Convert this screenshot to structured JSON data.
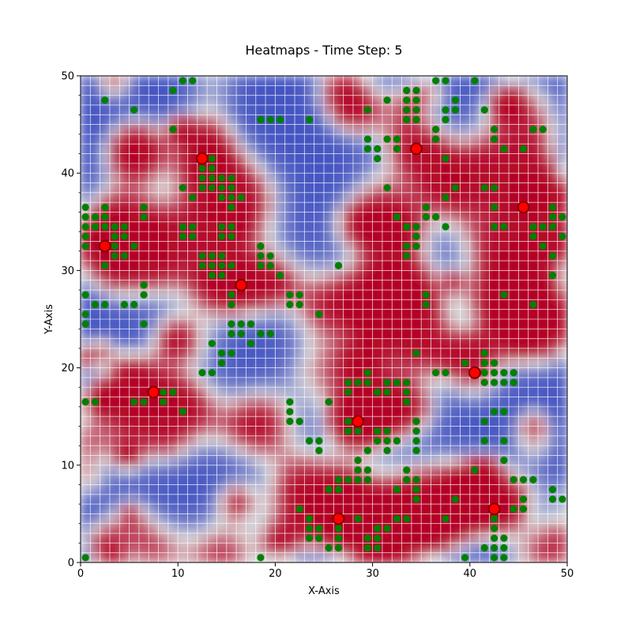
{
  "chart_data": {
    "type": "heatmap",
    "title": "Heatmaps - Time Step: 5",
    "xlabel": "X-Axis",
    "ylabel": "Y-Axis",
    "xlim": [
      0,
      50
    ],
    "ylim": [
      0,
      50
    ],
    "xticks": [
      "0",
      "10",
      "20",
      "30",
      "40",
      "50"
    ],
    "yticks": [
      "0",
      "10",
      "20",
      "30",
      "40",
      "50"
    ],
    "grid": true,
    "grid_resolution": 50,
    "colormap": "coolwarm",
    "colors": {
      "low": "#3b4cc0",
      "mid": "#dddddd",
      "high": "#b40426",
      "grid_line": "#ffffff",
      "green_marker": "#008000",
      "red_marker": "#ff0000",
      "red_marker_edge": "#8b0000"
    },
    "red_markers": [
      [
        2.5,
        32.5
      ],
      [
        7.5,
        17.5
      ],
      [
        12.5,
        41.5
      ],
      [
        16.5,
        28.5
      ],
      [
        26.5,
        4.5
      ],
      [
        28.5,
        14.5
      ],
      [
        34.5,
        42.5
      ],
      [
        40.5,
        19.5
      ],
      [
        42.5,
        5.5
      ],
      [
        45.5,
        36.5
      ]
    ],
    "green_markers": [
      [
        0.5,
        0.5
      ],
      [
        0.5,
        16.5
      ],
      [
        0.5,
        24.5
      ],
      [
        0.5,
        25.5
      ],
      [
        0.5,
        27.5
      ],
      [
        0.5,
        32.5
      ],
      [
        0.5,
        33.5
      ],
      [
        0.5,
        34.5
      ],
      [
        0.5,
        35.5
      ],
      [
        0.5,
        36.5
      ],
      [
        1.5,
        16.5
      ],
      [
        1.5,
        26.5
      ],
      [
        1.5,
        34.5
      ],
      [
        1.5,
        35.5
      ],
      [
        2.5,
        26.5
      ],
      [
        2.5,
        30.5
      ],
      [
        2.5,
        34.5
      ],
      [
        2.5,
        35.5
      ],
      [
        2.5,
        36.5
      ],
      [
        2.5,
        47.5
      ],
      [
        3.5,
        31.5
      ],
      [
        3.5,
        32.5
      ],
      [
        3.5,
        33.5
      ],
      [
        3.5,
        34.5
      ],
      [
        4.5,
        26.5
      ],
      [
        4.5,
        31.5
      ],
      [
        4.5,
        33.5
      ],
      [
        4.5,
        34.5
      ],
      [
        5.5,
        16.5
      ],
      [
        5.5,
        26.5
      ],
      [
        5.5,
        32.5
      ],
      [
        5.5,
        46.5
      ],
      [
        6.5,
        16.5
      ],
      [
        6.5,
        24.5
      ],
      [
        6.5,
        27.5
      ],
      [
        6.5,
        28.5
      ],
      [
        6.5,
        35.5
      ],
      [
        6.5,
        36.5
      ],
      [
        8.5,
        16.5
      ],
      [
        8.5,
        17.5
      ],
      [
        9.5,
        17.5
      ],
      [
        9.5,
        44.5
      ],
      [
        9.5,
        48.5
      ],
      [
        10.5,
        15.5
      ],
      [
        10.5,
        33.5
      ],
      [
        10.5,
        34.5
      ],
      [
        10.5,
        38.5
      ],
      [
        10.5,
        49.5
      ],
      [
        11.5,
        33.5
      ],
      [
        11.5,
        34.5
      ],
      [
        11.5,
        37.5
      ],
      [
        11.5,
        49.5
      ],
      [
        12.5,
        19.5
      ],
      [
        12.5,
        30.5
      ],
      [
        12.5,
        31.5
      ],
      [
        12.5,
        38.5
      ],
      [
        12.5,
        39.5
      ],
      [
        12.5,
        40.5
      ],
      [
        13.5,
        19.5
      ],
      [
        13.5,
        22.5
      ],
      [
        13.5,
        29.5
      ],
      [
        13.5,
        30.5
      ],
      [
        13.5,
        31.5
      ],
      [
        13.5,
        38.5
      ],
      [
        13.5,
        39.5
      ],
      [
        13.5,
        40.5
      ],
      [
        13.5,
        41.5
      ],
      [
        14.5,
        20.5
      ],
      [
        14.5,
        21.5
      ],
      [
        14.5,
        29.5
      ],
      [
        14.5,
        30.5
      ],
      [
        14.5,
        31.5
      ],
      [
        14.5,
        33.5
      ],
      [
        14.5,
        34.5
      ],
      [
        14.5,
        37.5
      ],
      [
        14.5,
        38.5
      ],
      [
        14.5,
        39.5
      ],
      [
        15.5,
        21.5
      ],
      [
        15.5,
        23.5
      ],
      [
        15.5,
        24.5
      ],
      [
        15.5,
        26.5
      ],
      [
        15.5,
        27.5
      ],
      [
        15.5,
        30.5
      ],
      [
        15.5,
        33.5
      ],
      [
        15.5,
        34.5
      ],
      [
        15.5,
        36.5
      ],
      [
        15.5,
        37.5
      ],
      [
        15.5,
        38.5
      ],
      [
        15.5,
        39.5
      ],
      [
        16.5,
        23.5
      ],
      [
        16.5,
        24.5
      ],
      [
        16.5,
        37.5
      ],
      [
        17.5,
        22.5
      ],
      [
        17.5,
        24.5
      ],
      [
        18.5,
        0.5
      ],
      [
        18.5,
        23.5
      ],
      [
        18.5,
        30.5
      ],
      [
        18.5,
        31.5
      ],
      [
        18.5,
        32.5
      ],
      [
        18.5,
        45.5
      ],
      [
        19.5,
        23.5
      ],
      [
        19.5,
        30.5
      ],
      [
        19.5,
        31.5
      ],
      [
        19.5,
        45.5
      ],
      [
        20.5,
        29.5
      ],
      [
        20.5,
        45.5
      ],
      [
        21.5,
        14.5
      ],
      [
        21.5,
        15.5
      ],
      [
        21.5,
        16.5
      ],
      [
        21.5,
        26.5
      ],
      [
        21.5,
        27.5
      ],
      [
        22.5,
        5.5
      ],
      [
        22.5,
        14.5
      ],
      [
        22.5,
        26.5
      ],
      [
        22.5,
        27.5
      ],
      [
        23.5,
        2.5
      ],
      [
        23.5,
        3.5
      ],
      [
        23.5,
        4.5
      ],
      [
        23.5,
        12.5
      ],
      [
        23.5,
        45.5
      ],
      [
        24.5,
        2.5
      ],
      [
        24.5,
        3.5
      ],
      [
        24.5,
        11.5
      ],
      [
        24.5,
        12.5
      ],
      [
        24.5,
        25.5
      ],
      [
        25.5,
        1.5
      ],
      [
        25.5,
        7.5
      ],
      [
        25.5,
        16.5
      ],
      [
        26.5,
        1.5
      ],
      [
        26.5,
        2.5
      ],
      [
        26.5,
        3.5
      ],
      [
        26.5,
        7.5
      ],
      [
        26.5,
        8.5
      ],
      [
        26.5,
        30.5
      ],
      [
        27.5,
        8.5
      ],
      [
        27.5,
        13.5
      ],
      [
        27.5,
        14.5
      ],
      [
        27.5,
        17.5
      ],
      [
        27.5,
        18.5
      ],
      [
        28.5,
        4.5
      ],
      [
        28.5,
        8.5
      ],
      [
        28.5,
        9.5
      ],
      [
        28.5,
        10.5
      ],
      [
        28.5,
        13.5
      ],
      [
        28.5,
        18.5
      ],
      [
        29.5,
        1.5
      ],
      [
        29.5,
        2.5
      ],
      [
        29.5,
        8.5
      ],
      [
        29.5,
        9.5
      ],
      [
        29.5,
        11.5
      ],
      [
        29.5,
        18.5
      ],
      [
        29.5,
        19.5
      ],
      [
        29.5,
        42.5
      ],
      [
        29.5,
        43.5
      ],
      [
        29.5,
        46.5
      ],
      [
        30.5,
        1.5
      ],
      [
        30.5,
        2.5
      ],
      [
        30.5,
        3.5
      ],
      [
        30.5,
        12.5
      ],
      [
        30.5,
        13.5
      ],
      [
        30.5,
        17.5
      ],
      [
        30.5,
        41.5
      ],
      [
        30.5,
        42.5
      ],
      [
        31.5,
        3.5
      ],
      [
        31.5,
        11.5
      ],
      [
        31.5,
        12.5
      ],
      [
        31.5,
        13.5
      ],
      [
        31.5,
        17.5
      ],
      [
        31.5,
        18.5
      ],
      [
        31.5,
        38.5
      ],
      [
        31.5,
        43.5
      ],
      [
        31.5,
        47.5
      ],
      [
        32.5,
        4.5
      ],
      [
        32.5,
        7.5
      ],
      [
        32.5,
        12.5
      ],
      [
        32.5,
        18.5
      ],
      [
        32.5,
        35.5
      ],
      [
        32.5,
        42.5
      ],
      [
        32.5,
        43.5
      ],
      [
        33.5,
        4.5
      ],
      [
        33.5,
        8.5
      ],
      [
        33.5,
        9.5
      ],
      [
        33.5,
        16.5
      ],
      [
        33.5,
        17.5
      ],
      [
        33.5,
        18.5
      ],
      [
        33.5,
        31.5
      ],
      [
        33.5,
        32.5
      ],
      [
        33.5,
        34.5
      ],
      [
        33.5,
        45.5
      ],
      [
        33.5,
        46.5
      ],
      [
        33.5,
        47.5
      ],
      [
        33.5,
        48.5
      ],
      [
        34.5,
        6.5
      ],
      [
        34.5,
        7.5
      ],
      [
        34.5,
        8.5
      ],
      [
        34.5,
        11.5
      ],
      [
        34.5,
        12.5
      ],
      [
        34.5,
        13.5
      ],
      [
        34.5,
        14.5
      ],
      [
        34.5,
        21.5
      ],
      [
        34.5,
        32.5
      ],
      [
        34.5,
        33.5
      ],
      [
        34.5,
        34.5
      ],
      [
        34.5,
        45.5
      ],
      [
        34.5,
        46.5
      ],
      [
        34.5,
        47.5
      ],
      [
        34.5,
        48.5
      ],
      [
        35.5,
        26.5
      ],
      [
        35.5,
        27.5
      ],
      [
        35.5,
        35.5
      ],
      [
        35.5,
        36.5
      ],
      [
        36.5,
        19.5
      ],
      [
        36.5,
        35.5
      ],
      [
        36.5,
        43.5
      ],
      [
        36.5,
        44.5
      ],
      [
        36.5,
        49.5
      ],
      [
        37.5,
        4.5
      ],
      [
        37.5,
        19.5
      ],
      [
        37.5,
        34.5
      ],
      [
        37.5,
        37.5
      ],
      [
        37.5,
        41.5
      ],
      [
        37.5,
        45.5
      ],
      [
        37.5,
        46.5
      ],
      [
        37.5,
        49.5
      ],
      [
        38.5,
        6.5
      ],
      [
        38.5,
        38.5
      ],
      [
        38.5,
        46.5
      ],
      [
        38.5,
        47.5
      ],
      [
        39.5,
        0.5
      ],
      [
        39.5,
        20.5
      ],
      [
        40.5,
        9.5
      ],
      [
        40.5,
        49.5
      ],
      [
        41.5,
        1.5
      ],
      [
        41.5,
        12.5
      ],
      [
        41.5,
        14.5
      ],
      [
        41.5,
        18.5
      ],
      [
        41.5,
        19.5
      ],
      [
        41.5,
        20.5
      ],
      [
        41.5,
        21.5
      ],
      [
        41.5,
        38.5
      ],
      [
        41.5,
        46.5
      ],
      [
        42.5,
        0.5
      ],
      [
        42.5,
        1.5
      ],
      [
        42.5,
        2.5
      ],
      [
        42.5,
        3.5
      ],
      [
        42.5,
        4.5
      ],
      [
        42.5,
        15.5
      ],
      [
        42.5,
        18.5
      ],
      [
        42.5,
        19.5
      ],
      [
        42.5,
        20.5
      ],
      [
        42.5,
        34.5
      ],
      [
        42.5,
        36.5
      ],
      [
        42.5,
        38.5
      ],
      [
        42.5,
        43.5
      ],
      [
        42.5,
        44.5
      ],
      [
        43.5,
        0.5
      ],
      [
        43.5,
        1.5
      ],
      [
        43.5,
        2.5
      ],
      [
        43.5,
        10.5
      ],
      [
        43.5,
        12.5
      ],
      [
        43.5,
        15.5
      ],
      [
        43.5,
        18.5
      ],
      [
        43.5,
        19.5
      ],
      [
        43.5,
        27.5
      ],
      [
        43.5,
        34.5
      ],
      [
        43.5,
        42.5
      ],
      [
        44.5,
        5.5
      ],
      [
        44.5,
        8.5
      ],
      [
        44.5,
        18.5
      ],
      [
        44.5,
        19.5
      ],
      [
        45.5,
        5.5
      ],
      [
        45.5,
        6.5
      ],
      [
        45.5,
        8.5
      ],
      [
        45.5,
        42.5
      ],
      [
        46.5,
        8.5
      ],
      [
        46.5,
        26.5
      ],
      [
        46.5,
        33.5
      ],
      [
        46.5,
        34.5
      ],
      [
        46.5,
        44.5
      ],
      [
        47.5,
        32.5
      ],
      [
        47.5,
        34.5
      ],
      [
        47.5,
        44.5
      ],
      [
        48.5,
        6.5
      ],
      [
        48.5,
        7.5
      ],
      [
        48.5,
        29.5
      ],
      [
        48.5,
        31.5
      ],
      [
        48.5,
        34.5
      ],
      [
        48.5,
        35.5
      ],
      [
        48.5,
        36.5
      ],
      [
        49.5,
        6.5
      ],
      [
        49.5,
        33.5
      ],
      [
        49.5,
        35.5
      ]
    ]
  }
}
